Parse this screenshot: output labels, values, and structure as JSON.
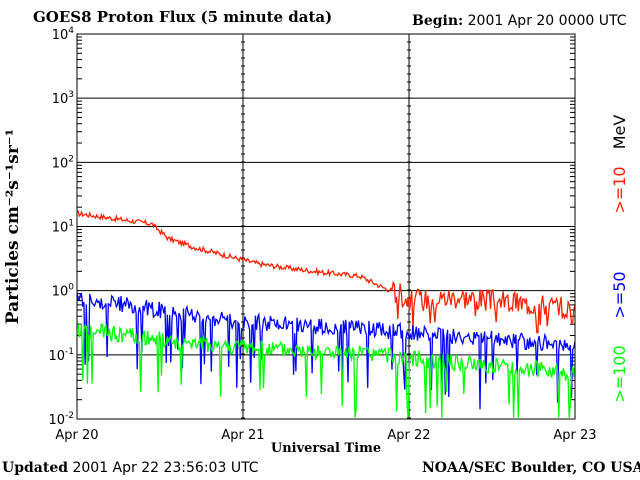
{
  "header": {
    "title": "GOES8 Proton Flux (5 minute data)",
    "begin_label": "Begin:",
    "begin_value": " 2001 Apr 20 0000 UTC"
  },
  "footer": {
    "updated_label": "Updated",
    "updated_value": " 2001 Apr 22 23:56:03 UTC",
    "credit": "NOAA/SEC Boulder, CO USA"
  },
  "chart_data": {
    "type": "line",
    "title": "GOES8 Proton Flux (5 minute data)",
    "xlabel": "Universal Time",
    "ylabel": "Particles cm⁻²s⁻¹sr⁻¹",
    "yscale": "log",
    "ylim": [
      0.01,
      10000
    ],
    "y_tick_labels": [
      "10⁻²",
      "10⁻¹",
      "10⁰",
      "10¹",
      "10²",
      "10³",
      "10⁴"
    ],
    "y_tick_values": [
      0.01,
      0.1,
      1,
      10,
      100,
      1000,
      10000
    ],
    "x_tick_labels": [
      "Apr 20",
      "Apr 21",
      "Apr 22",
      "Apr 23"
    ],
    "x_tick_values": [
      0,
      1,
      2,
      3
    ],
    "xlim": [
      0,
      3
    ],
    "grid": true,
    "legend_unit": "MeV",
    "series": [
      {
        "name": ">=10",
        "color": "#ff2000",
        "x": [
          0,
          0.25,
          0.45,
          0.55,
          0.7,
          0.9,
          1.1,
          1.3,
          1.5,
          1.7,
          1.85,
          1.95,
          2.0,
          2.3,
          2.6,
          2.8,
          2.95,
          3.0
        ],
        "y": [
          16,
          13,
          11,
          6.5,
          4.8,
          3.5,
          2.6,
          2.2,
          1.9,
          1.7,
          1.1,
          0.9,
          0.7,
          0.8,
          0.65,
          0.6,
          0.55,
          0.4
        ]
      },
      {
        "name": ">=50",
        "color": "#0000ff",
        "x": [
          0,
          0.3,
          0.6,
          0.9,
          1.2,
          1.5,
          1.8,
          2.0,
          2.3,
          2.6,
          2.9,
          3.0
        ],
        "y": [
          0.75,
          0.6,
          0.45,
          0.35,
          0.3,
          0.27,
          0.25,
          0.22,
          0.19,
          0.17,
          0.15,
          0.13
        ]
      },
      {
        "name": ">=100",
        "color": "#00ff00",
        "x": [
          0,
          0.3,
          0.6,
          0.9,
          1.2,
          1.5,
          1.8,
          2.0,
          2.3,
          2.6,
          2.9,
          3.0
        ],
        "y": [
          0.25,
          0.2,
          0.16,
          0.14,
          0.12,
          0.11,
          0.1,
          0.09,
          0.075,
          0.065,
          0.055,
          0.05
        ]
      }
    ]
  }
}
